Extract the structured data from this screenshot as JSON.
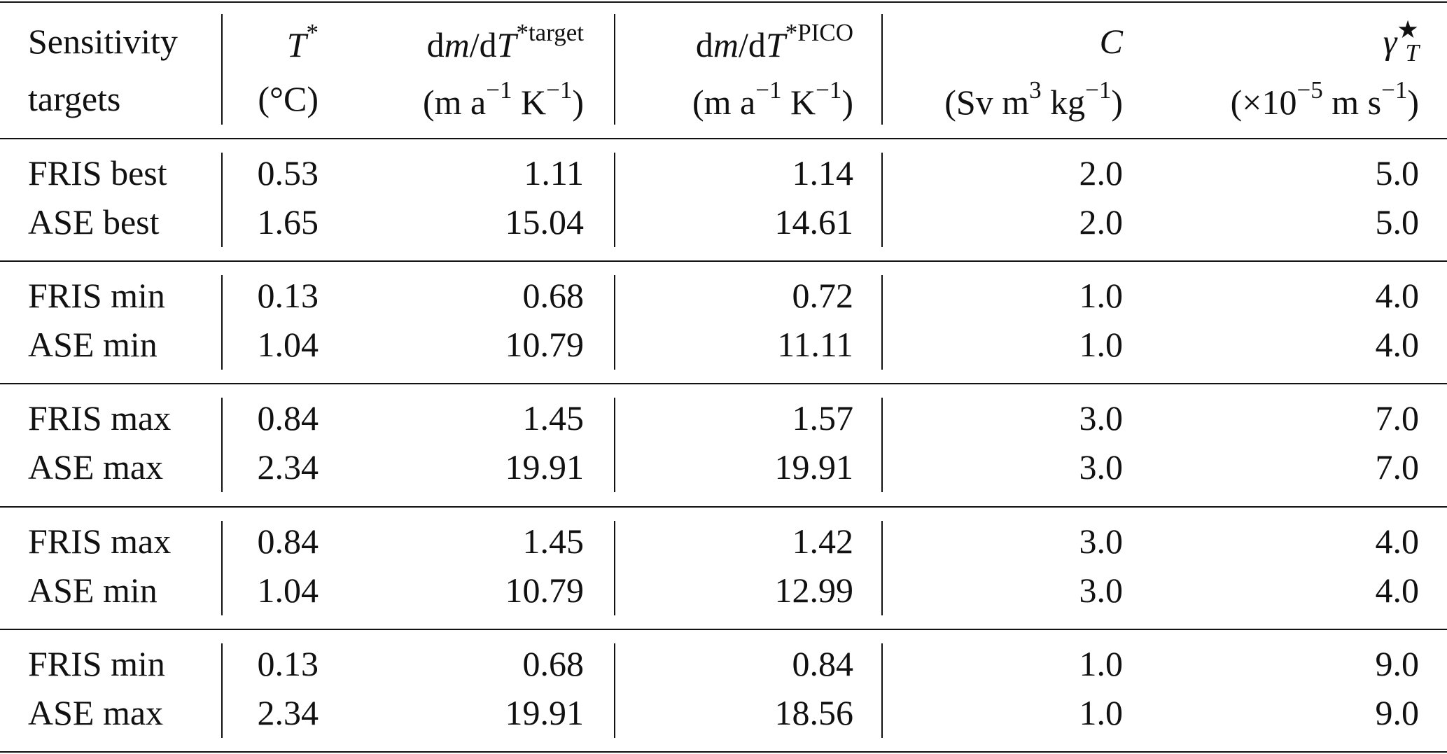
{
  "table": {
    "header": [
      [
        [
          {
            "t": "Sensitivity"
          }
        ],
        [
          {
            "t": "targets"
          }
        ]
      ],
      [
        [
          {
            "t": "T",
            "i": true
          },
          {
            "t": "*",
            "sup": true
          }
        ],
        [
          {
            "t": "(°C)"
          }
        ]
      ],
      [
        [
          {
            "t": "d"
          },
          {
            "t": "m",
            "i": true
          },
          {
            "t": "/d"
          },
          {
            "t": "T",
            "i": true
          },
          {
            "t": "*target",
            "sup": true
          }
        ],
        [
          {
            "t": "(m a"
          },
          {
            "t": "−1",
            "sup": true
          },
          {
            "t": " K"
          },
          {
            "t": "−1",
            "sup": true
          },
          {
            "t": ")"
          }
        ]
      ],
      [
        [
          {
            "t": "d"
          },
          {
            "t": "m",
            "i": true
          },
          {
            "t": "/d"
          },
          {
            "t": "T",
            "i": true
          },
          {
            "t": "*PICO",
            "sup": true
          }
        ],
        [
          {
            "t": "(m a"
          },
          {
            "t": "−1",
            "sup": true
          },
          {
            "t": " K"
          },
          {
            "t": "−1",
            "sup": true
          },
          {
            "t": ")"
          }
        ]
      ],
      [
        [
          {
            "t": "C",
            "i": true
          }
        ],
        [
          {
            "t": "(Sv m"
          },
          {
            "t": "3",
            "sup": true
          },
          {
            "t": " kg"
          },
          {
            "t": "−1",
            "sup": true
          },
          {
            "t": ")"
          }
        ]
      ],
      [
        [
          {
            "t": "γ",
            "i": true
          },
          {
            "t": "★",
            "sup": true
          },
          {
            "t": "T",
            "i": true,
            "sub": true
          }
        ],
        [
          {
            "t": "(×10"
          },
          {
            "t": "−5",
            "sup": true
          },
          {
            "t": " m s"
          },
          {
            "t": "−1",
            "sup": true
          },
          {
            "t": ")"
          }
        ]
      ]
    ],
    "groups": [
      [
        [
          "FRIS best",
          "0.53",
          "1.11",
          "1.14",
          "2.0",
          "5.0"
        ],
        [
          "ASE best",
          "1.65",
          "15.04",
          "14.61",
          "2.0",
          "5.0"
        ]
      ],
      [
        [
          "FRIS min",
          "0.13",
          "0.68",
          "0.72",
          "1.0",
          "4.0"
        ],
        [
          "ASE min",
          "1.04",
          "10.79",
          "11.11",
          "1.0",
          "4.0"
        ]
      ],
      [
        [
          "FRIS max",
          "0.84",
          "1.45",
          "1.57",
          "3.0",
          "7.0"
        ],
        [
          "ASE max",
          "2.34",
          "19.91",
          "19.91",
          "3.0",
          "7.0"
        ]
      ],
      [
        [
          "FRIS max",
          "0.84",
          "1.45",
          "1.42",
          "3.0",
          "4.0"
        ],
        [
          "ASE min",
          "1.04",
          "10.79",
          "12.99",
          "3.0",
          "4.0"
        ]
      ],
      [
        [
          "FRIS min",
          "0.13",
          "0.68",
          "0.84",
          "1.0",
          "9.0"
        ],
        [
          "ASE max",
          "2.34",
          "19.91",
          "18.56",
          "1.0",
          "9.0"
        ]
      ]
    ]
  }
}
